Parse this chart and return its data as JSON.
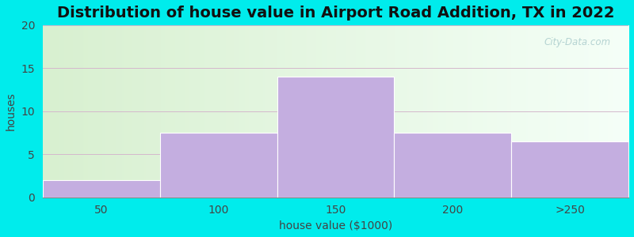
{
  "title": "Distribution of house value in Airport Road Addition, TX in 2022",
  "xlabel": "house value ($1000)",
  "ylabel": "houses",
  "bar_labels": [
    "50",
    "100",
    "150",
    "200",
    ">250"
  ],
  "bar_values": [
    2,
    7.5,
    14,
    7.5,
    6.5
  ],
  "bar_color": "#c4aee0",
  "bar_edgecolor": "#ffffff",
  "ylim": [
    0,
    20
  ],
  "yticks": [
    0,
    5,
    10,
    15,
    20
  ],
  "background_outer": "#00ECEC",
  "bg_gradient_left": "#d8f0d0",
  "bg_gradient_right": "#f0faf8",
  "title_fontsize": 14,
  "axis_label_fontsize": 10,
  "tick_fontsize": 10,
  "grid_color": "#d4b8cc",
  "watermark_text": "City-Data.com"
}
